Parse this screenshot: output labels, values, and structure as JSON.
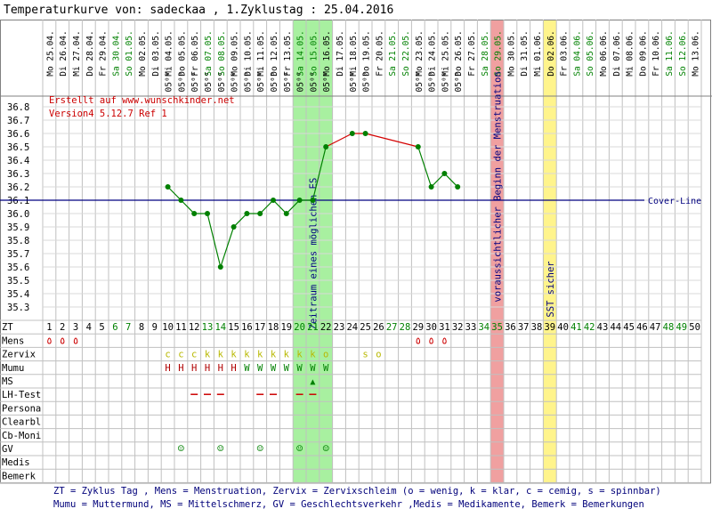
{
  "page_title": "Temperaturkurve von: sadeckaa , 1.Zyklustag : 25.04.2016",
  "credit": [
    "Erstellt auf www.wunschkinder.net",
    "Version4 5.12.7 Ref 1"
  ],
  "footer": [
    "ZT = Zyklus Tag , Mens = Menstruation, Zervix = Zervixschleim (o = wenig, k = klar, c = cemig, s = spinnbar)",
    "Mumu = Muttermund, MS = Mittelschmerz, GV = Geschlechtsverkehr ,Medis = Medikamente, Bemerk = Bemerkungen"
  ],
  "colors": {
    "grid": "#c0c0c0",
    "temp_low": "#008000",
    "temp_high": "#d40000",
    "coverline": "#000080",
    "fertile_band": "#a8f0a0",
    "menstruation_band": "#f0a0a0",
    "sst_band": "#fff48c",
    "weekday_text": "#000000",
    "weekend_text": "#008000"
  },
  "chart_data": {
    "type": "line",
    "title": "",
    "xlabel": "ZT",
    "ylabel": "",
    "y_ticks": [
      "36.8",
      "36.7",
      "36.6",
      "36.5",
      "36.4",
      "36.3",
      "36.2",
      "36.1",
      "36.0",
      "35.9",
      "35.8",
      "35.7",
      "35.6",
      "35.5",
      "35.4",
      "35.3"
    ],
    "ylim": [
      35.2,
      36.9
    ],
    "days": [
      {
        "zt": 1,
        "wd": "Mo",
        "date": "25.04."
      },
      {
        "zt": 2,
        "wd": "Di",
        "date": "26.04."
      },
      {
        "zt": 3,
        "wd": "Mi",
        "date": "27.04."
      },
      {
        "zt": 4,
        "wd": "Do",
        "date": "28.04."
      },
      {
        "zt": 5,
        "wd": "Fr",
        "date": "29.04."
      },
      {
        "zt": 6,
        "wd": "Sa",
        "date": "30.04."
      },
      {
        "zt": 7,
        "wd": "So",
        "date": "01.05."
      },
      {
        "zt": 8,
        "wd": "Mo",
        "date": "02.05."
      },
      {
        "zt": 9,
        "wd": "Di",
        "date": "03.05."
      },
      {
        "zt": 10,
        "wd": "Mi",
        "date": "04.05."
      },
      {
        "zt": 11,
        "wd": "Do",
        "date": "05.05."
      },
      {
        "zt": 12,
        "wd": "Fr",
        "date": "06.05."
      },
      {
        "zt": 13,
        "wd": "Sa",
        "date": "07.05."
      },
      {
        "zt": 14,
        "wd": "So",
        "date": "08.05."
      },
      {
        "zt": 15,
        "wd": "Mo",
        "date": "09.05."
      },
      {
        "zt": 16,
        "wd": "Di",
        "date": "10.05."
      },
      {
        "zt": 17,
        "wd": "Mi",
        "date": "11.05."
      },
      {
        "zt": 18,
        "wd": "Do",
        "date": "12.05."
      },
      {
        "zt": 19,
        "wd": "Fr",
        "date": "13.05."
      },
      {
        "zt": 20,
        "wd": "Sa",
        "date": "14.05."
      },
      {
        "zt": 21,
        "wd": "So",
        "date": "15.05."
      },
      {
        "zt": 22,
        "wd": "Mo",
        "date": "16.05."
      },
      {
        "zt": 23,
        "wd": "Di",
        "date": "17.05."
      },
      {
        "zt": 24,
        "wd": "Mi",
        "date": "18.05."
      },
      {
        "zt": 25,
        "wd": "Do",
        "date": "19.05."
      },
      {
        "zt": 26,
        "wd": "Fr",
        "date": "20.05."
      },
      {
        "zt": 27,
        "wd": "Sa",
        "date": "21.05."
      },
      {
        "zt": 28,
        "wd": "So",
        "date": "22.05."
      },
      {
        "zt": 29,
        "wd": "Mo",
        "date": "23.05."
      },
      {
        "zt": 30,
        "wd": "Di",
        "date": "24.05."
      },
      {
        "zt": 31,
        "wd": "Mi",
        "date": "25.05."
      },
      {
        "zt": 32,
        "wd": "Do",
        "date": "26.05."
      },
      {
        "zt": 33,
        "wd": "Fr",
        "date": "27.05."
      },
      {
        "zt": 34,
        "wd": "Sa",
        "date": "28.05."
      },
      {
        "zt": 35,
        "wd": "So",
        "date": "29.05."
      },
      {
        "zt": 36,
        "wd": "Mo",
        "date": "30.05."
      },
      {
        "zt": 37,
        "wd": "Di",
        "date": "31.05."
      },
      {
        "zt": 38,
        "wd": "Mi",
        "date": "01.06."
      },
      {
        "zt": 39,
        "wd": "Do",
        "date": "02.06."
      },
      {
        "zt": 40,
        "wd": "Fr",
        "date": "03.06."
      },
      {
        "zt": 41,
        "wd": "Sa",
        "date": "04.06."
      },
      {
        "zt": 42,
        "wd": "So",
        "date": "05.06."
      },
      {
        "zt": 43,
        "wd": "Mo",
        "date": "06.06."
      },
      {
        "zt": 44,
        "wd": "Di",
        "date": "07.06."
      },
      {
        "zt": 45,
        "wd": "Mi",
        "date": "08.06."
      },
      {
        "zt": 46,
        "wd": "Do",
        "date": "09.06."
      },
      {
        "zt": 47,
        "wd": "Fr",
        "date": "10.06."
      },
      {
        "zt": 48,
        "wd": "Sa",
        "date": "11.06."
      },
      {
        "zt": 49,
        "wd": "So",
        "date": "12.06."
      },
      {
        "zt": 50,
        "wd": "Mo",
        "date": "13.06."
      }
    ],
    "measure_time_label": "05⁰⁰",
    "measure_days": [
      10,
      11,
      12,
      13,
      14,
      15,
      16,
      17,
      18,
      19,
      20,
      21,
      22,
      24,
      25,
      29,
      30,
      31,
      32
    ],
    "series": [
      {
        "name": "",
        "color": "#008000",
        "points": [
          [
            10,
            36.2
          ],
          [
            11,
            36.1
          ],
          [
            12,
            36.0
          ],
          [
            13,
            36.0
          ],
          [
            14,
            35.6
          ],
          [
            15,
            35.9
          ],
          [
            16,
            36.0
          ],
          [
            17,
            36.0
          ],
          [
            18,
            36.1
          ],
          [
            19,
            36.0
          ],
          [
            20,
            36.1
          ],
          [
            21,
            36.1
          ],
          [
            22,
            36.5
          ]
        ]
      },
      {
        "name": "",
        "color": "#d40000",
        "points": [
          [
            22,
            36.5
          ],
          [
            24,
            36.6
          ],
          [
            25,
            36.6
          ],
          [
            29,
            36.5
          ]
        ]
      },
      {
        "name": "",
        "color": "#008000",
        "points": [
          [
            29,
            36.5
          ],
          [
            30,
            36.2
          ],
          [
            31,
            36.3
          ],
          [
            32,
            36.2
          ]
        ]
      }
    ],
    "coverline": {
      "value": 36.1,
      "label": "Cover-Line"
    },
    "bands": [
      {
        "from": 20,
        "to": 22,
        "kind": "fertile",
        "label": "Zeitraum eines möglichen ES"
      },
      {
        "from": 35,
        "to": 35,
        "kind": "menstruation",
        "label": "voraussichtlicher Beginn der Menstruation"
      },
      {
        "from": 39,
        "to": 39,
        "kind": "sst",
        "label": "SST sicher"
      }
    ],
    "rows": {
      "labels": [
        "ZT",
        "Mens",
        "Zervix",
        "Mumu",
        "MS",
        "LH-Test",
        "Persona",
        "Clearbl",
        "Cb-Moni",
        "GV",
        "Medis",
        "Bemerk"
      ],
      "mens_symbol": "٥",
      "mens_days": [
        1,
        2,
        3,
        29,
        30,
        31
      ],
      "zervix": [
        {
          "d": 10,
          "v": "c"
        },
        {
          "d": 11,
          "v": "c"
        },
        {
          "d": 12,
          "v": "c"
        },
        {
          "d": 13,
          "v": "k"
        },
        {
          "d": 14,
          "v": "k"
        },
        {
          "d": 15,
          "v": "k"
        },
        {
          "d": 16,
          "v": "k"
        },
        {
          "d": 17,
          "v": "k"
        },
        {
          "d": 18,
          "v": "k"
        },
        {
          "d": 19,
          "v": "k"
        },
        {
          "d": 20,
          "v": "k"
        },
        {
          "d": 21,
          "v": "k"
        },
        {
          "d": 22,
          "v": "o"
        },
        {
          "d": 25,
          "v": "s"
        },
        {
          "d": 26,
          "v": "o"
        }
      ],
      "mumu": [
        {
          "d": 10,
          "v": "H"
        },
        {
          "d": 11,
          "v": "H"
        },
        {
          "d": 12,
          "v": "H"
        },
        {
          "d": 13,
          "v": "H"
        },
        {
          "d": 14,
          "v": "H"
        },
        {
          "d": 15,
          "v": "H"
        },
        {
          "d": 16,
          "v": "W"
        },
        {
          "d": 17,
          "v": "W"
        },
        {
          "d": 18,
          "v": "W"
        },
        {
          "d": 19,
          "v": "W"
        },
        {
          "d": 20,
          "v": "W"
        },
        {
          "d": 21,
          "v": "W"
        },
        {
          "d": 22,
          "v": "W"
        }
      ],
      "ms_symbol": "▲",
      "ms_days": [
        21
      ],
      "lh_days": [
        12,
        13,
        14,
        17,
        18,
        20,
        21
      ],
      "gv_symbol": "☺",
      "gv_days": [
        11,
        14,
        17,
        20,
        22
      ]
    }
  }
}
